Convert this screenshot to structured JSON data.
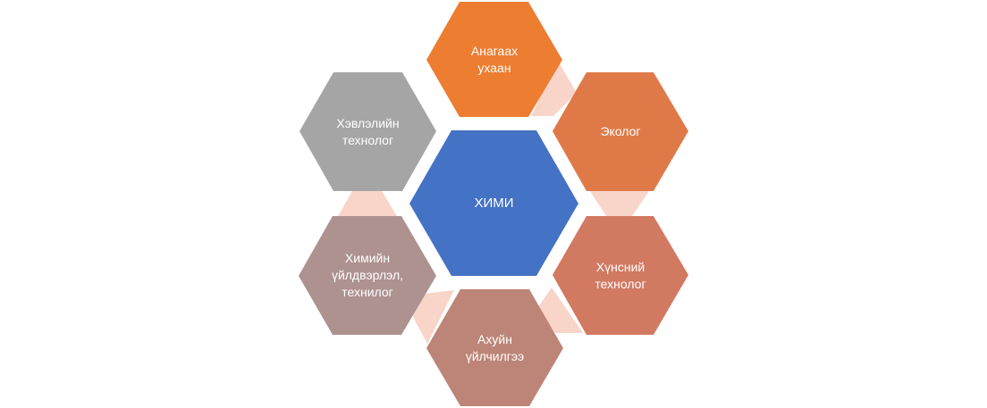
{
  "center": {
    "label": "ХИМИ",
    "color": "#4472C4"
  },
  "nodes": [
    {
      "id": "anagaah",
      "label": "Анагаах\nухаан",
      "color": "#ED7D31"
    },
    {
      "id": "ekolog",
      "label": "Эколог",
      "color": "#DF7A48"
    },
    {
      "id": "hunsnii",
      "label": "Хүнсний\nтехнолог",
      "color": "#D27961"
    },
    {
      "id": "ahuin",
      "label": "Ахуйн\nүйлчилгээ",
      "color": "#BD8577"
    },
    {
      "id": "himiin",
      "label": "Химийн\nүйлдвэрлэл,\nтехнилог",
      "color": "#AD9290"
    },
    {
      "id": "hevleliin",
      "label": "Хэвлэлийн\nтехнолог",
      "color": "#A5A5A5"
    }
  ],
  "connector_color": "#F8D5C8"
}
